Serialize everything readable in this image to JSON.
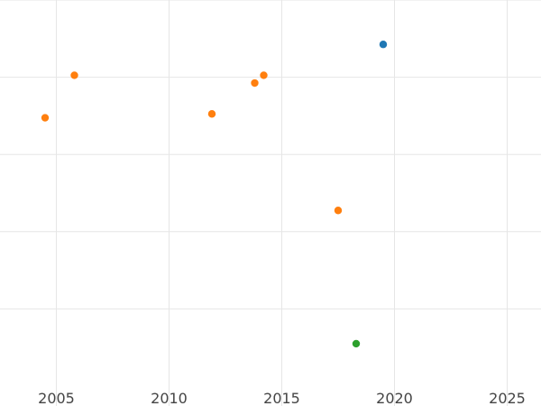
{
  "chart_data": {
    "type": "scatter",
    "title": "",
    "xlabel": "",
    "ylabel": "",
    "xlim": [
      2002.5,
      2026.5
    ],
    "ylim": [
      0,
      100
    ],
    "x_ticks": [
      2005,
      2010,
      2015,
      2020,
      2025
    ],
    "x_tick_labels": [
      "2005",
      "2010",
      "2015",
      "2020",
      "2025"
    ],
    "y_gridlines": [
      20,
      40,
      60,
      80,
      100
    ],
    "grid": true,
    "legend": "none",
    "series": [
      {
        "color": "#ff7f0e",
        "points": [
          {
            "x": 2004.5,
            "y": 69.5
          },
          {
            "x": 2005.8,
            "y": 80.5
          },
          {
            "x": 2011.9,
            "y": 70.5
          },
          {
            "x": 2013.8,
            "y": 78.5
          },
          {
            "x": 2014.2,
            "y": 80.5
          },
          {
            "x": 2017.5,
            "y": 45.5
          }
        ]
      },
      {
        "color": "#1f77b4",
        "points": [
          {
            "x": 2019.5,
            "y": 88.5
          }
        ]
      },
      {
        "color": "#2ca02c",
        "points": [
          {
            "x": 2018.3,
            "y": 11.0
          }
        ]
      }
    ]
  }
}
